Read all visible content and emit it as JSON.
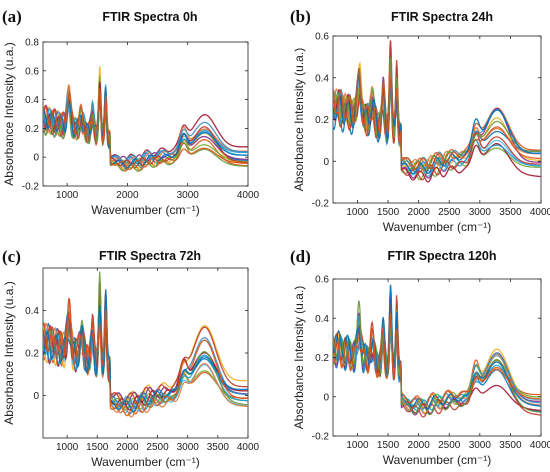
{
  "colors": [
    "#0072BD",
    "#D95319",
    "#EDB120",
    "#7E2F8E",
    "#77AC30",
    "#4DBEEE",
    "#A2142F",
    "#1F9BD7",
    "#E07A3F",
    "#3C8DBC",
    "#C0392B",
    "#6C9A3B"
  ],
  "chart_data": [
    {
      "type": "line",
      "label": "(a)",
      "title": "FTIR Spectra 0h",
      "xlabel": "Wavenumber (cm⁻¹)",
      "ylabel": "Absorbance Intensity (u.a.)",
      "xlim": [
        600,
        4000
      ],
      "ylim": [
        -0.2,
        0.8
      ],
      "xticks": [
        1000,
        2000,
        3000,
        4000
      ],
      "yticks": [
        -0.2,
        0,
        0.2,
        0.4,
        0.6,
        0.8
      ],
      "ytick_labels": [
        "-0.2",
        "0",
        "0.2",
        "0.4",
        "0.6",
        "0.8"
      ],
      "series_count": 14,
      "representative_series": {
        "x": [
          600,
          700,
          800,
          900,
          1000,
          1050,
          1100,
          1200,
          1250,
          1300,
          1400,
          1450,
          1500,
          1550,
          1600,
          1650,
          1700,
          1800,
          1900,
          2000,
          2100,
          2200,
          2300,
          2400,
          2500,
          2600,
          2700,
          2800,
          2900,
          3000,
          3100,
          3200,
          3300,
          3400,
          3500,
          3600,
          3700,
          3800,
          3900,
          4000
        ],
        "y": [
          0.3,
          0.22,
          0.14,
          0.2,
          0.32,
          0.25,
          0.2,
          0.3,
          0.22,
          0.28,
          0.42,
          0.3,
          0.45,
          0.55,
          0.45,
          0.3,
          0.0,
          -0.04,
          -0.06,
          -0.08,
          -0.05,
          -0.04,
          -0.03,
          -0.02,
          0.0,
          0.06,
          0.12,
          0.18,
          0.22,
          0.23,
          0.21,
          0.22,
          0.25,
          0.18,
          0.1,
          0.05,
          0.02,
          0.01,
          0.0,
          0.0
        ]
      }
    },
    {
      "type": "line",
      "label": "(b)",
      "title": "FTIR Spectra 24h",
      "xlabel": "Wavenumber (cm⁻¹)",
      "ylabel": "Absorbance Intensity (u.a.)",
      "xlim": [
        600,
        4000
      ],
      "ylim": [
        -0.2,
        0.6
      ],
      "xticks": [
        1000,
        1500,
        2000,
        2500,
        3000,
        3500,
        4000
      ],
      "yticks": [
        -0.2,
        0,
        0.2,
        0.4,
        0.6
      ],
      "ytick_labels": [
        "-0.2",
        "0",
        "0.2",
        "0.4",
        "0.6"
      ],
      "series_count": 14,
      "representative_series": {
        "x": [
          600,
          700,
          800,
          900,
          1000,
          1050,
          1100,
          1200,
          1250,
          1300,
          1400,
          1450,
          1500,
          1550,
          1600,
          1650,
          1700,
          1800,
          1900,
          2000,
          2100,
          2200,
          2300,
          2400,
          2500,
          2600,
          2700,
          2800,
          2900,
          3000,
          3100,
          3200,
          3300,
          3400,
          3500,
          3600,
          3700,
          3800,
          3900,
          4000
        ],
        "y": [
          0.28,
          0.2,
          0.14,
          0.18,
          0.3,
          0.22,
          0.2,
          0.28,
          0.2,
          0.26,
          0.38,
          0.28,
          0.42,
          0.52,
          0.42,
          0.28,
          0.0,
          -0.04,
          -0.06,
          -0.08,
          -0.05,
          -0.04,
          -0.03,
          -0.02,
          0.0,
          0.05,
          0.1,
          0.15,
          0.2,
          0.2,
          0.18,
          0.2,
          0.25,
          0.16,
          0.08,
          0.04,
          0.02,
          0.01,
          0.0,
          0.0
        ]
      }
    },
    {
      "type": "line",
      "label": "(c)",
      "title": "FTIR Spectra 72h",
      "xlabel": "Wavenumber (cm⁻¹)",
      "ylabel": "Absorbance Intensity (u.a.)",
      "xlim": [
        600,
        4000
      ],
      "ylim": [
        -0.2,
        0.6
      ],
      "xticks": [
        1000,
        1500,
        2000,
        2500,
        3000,
        3500,
        4000
      ],
      "yticks": [
        0,
        0.2,
        0.4
      ],
      "ytick_labels": [
        "0",
        "0.2",
        "0.4"
      ],
      "series_count": 14,
      "representative_series": {
        "x": [
          600,
          700,
          800,
          900,
          1000,
          1050,
          1100,
          1200,
          1250,
          1300,
          1400,
          1450,
          1500,
          1550,
          1600,
          1650,
          1700,
          1800,
          1900,
          2000,
          2100,
          2200,
          2300,
          2400,
          2500,
          2600,
          2700,
          2800,
          2900,
          3000,
          3100,
          3200,
          3300,
          3400,
          3500,
          3600,
          3700,
          3800,
          3900,
          4000
        ],
        "y": [
          0.35,
          0.25,
          0.18,
          0.2,
          0.38,
          0.28,
          0.22,
          0.3,
          0.22,
          0.28,
          0.42,
          0.3,
          0.46,
          0.52,
          0.42,
          0.25,
          0.0,
          -0.03,
          -0.05,
          -0.07,
          -0.04,
          -0.03,
          -0.02,
          -0.01,
          0.01,
          0.06,
          0.12,
          0.18,
          0.22,
          0.22,
          0.22,
          0.26,
          0.3,
          0.2,
          0.12,
          0.08,
          0.06,
          0.05,
          0.04,
          0.04
        ]
      }
    },
    {
      "type": "line",
      "label": "(d)",
      "title": "FTIR Spectra 120h",
      "xlabel": "Wavenumber (cm⁻¹)",
      "ylabel": "Absorbance Intensity (u.a.)",
      "xlim": [
        600,
        4000
      ],
      "ylim": [
        -0.2,
        0.6
      ],
      "xticks": [
        1000,
        1500,
        2000,
        2500,
        3000,
        3500,
        4000
      ],
      "yticks": [
        -0.2,
        0,
        0.2,
        0.4,
        0.6
      ],
      "ytick_labels": [
        "-0.2",
        "0",
        "0.2",
        "0.4",
        "0.6"
      ],
      "series_count": 14,
      "representative_series": {
        "x": [
          600,
          700,
          800,
          900,
          1000,
          1050,
          1100,
          1200,
          1250,
          1300,
          1400,
          1450,
          1500,
          1550,
          1600,
          1650,
          1700,
          1800,
          1900,
          2000,
          2100,
          2200,
          2300,
          2400,
          2500,
          2600,
          2700,
          2800,
          2900,
          3000,
          3100,
          3200,
          3300,
          3400,
          3500,
          3600,
          3700,
          3800,
          3900,
          4000
        ],
        "y": [
          0.3,
          0.22,
          0.15,
          0.18,
          0.35,
          0.25,
          0.2,
          0.28,
          0.2,
          0.26,
          0.4,
          0.28,
          0.44,
          0.52,
          0.44,
          0.26,
          0.0,
          -0.03,
          -0.05,
          -0.07,
          -0.04,
          -0.03,
          -0.02,
          -0.01,
          0.01,
          0.05,
          0.1,
          0.15,
          0.2,
          0.2,
          0.2,
          0.24,
          0.28,
          0.18,
          0.1,
          0.06,
          0.04,
          0.03,
          0.02,
          0.02
        ]
      }
    }
  ]
}
